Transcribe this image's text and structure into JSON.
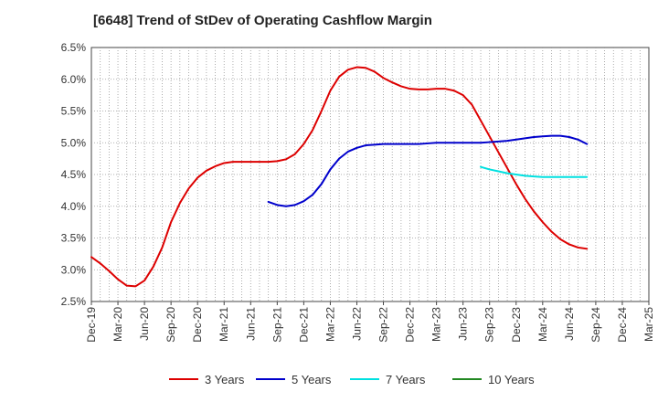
{
  "chart_data": {
    "type": "line",
    "title": "[6648]  Trend of StDev of Operating Cashflow Margin",
    "xlabel": "",
    "ylabel": "",
    "ylim": [
      2.5,
      6.5
    ],
    "y_ticks": [
      "6.5%",
      "6.0%",
      "5.5%",
      "5.0%",
      "4.5%",
      "4.0%",
      "3.5%",
      "3.0%",
      "2.5%"
    ],
    "x_ticks": [
      "Dec-19",
      "Mar-20",
      "Jun-20",
      "Sep-20",
      "Dec-20",
      "Mar-21",
      "Jun-21",
      "Sep-21",
      "Dec-21",
      "Mar-22",
      "Jun-22",
      "Sep-22",
      "Dec-22",
      "Mar-23",
      "Jun-23",
      "Sep-23",
      "Dec-23",
      "Mar-24",
      "Jun-24",
      "Sep-24",
      "Dec-24",
      "Mar-25"
    ],
    "grid": true,
    "legend_position": "bottom",
    "series": [
      {
        "name": "3 Years",
        "color": "#dd0000",
        "points": [
          [
            0,
            3.2
          ],
          [
            1,
            3.1
          ],
          [
            2,
            2.98
          ],
          [
            3,
            2.85
          ],
          [
            4,
            2.75
          ],
          [
            5,
            2.74
          ],
          [
            6,
            2.83
          ],
          [
            7,
            3.05
          ],
          [
            8,
            3.35
          ],
          [
            9,
            3.75
          ],
          [
            10,
            4.05
          ],
          [
            11,
            4.28
          ],
          [
            12,
            4.45
          ],
          [
            13,
            4.56
          ],
          [
            14,
            4.63
          ],
          [
            15,
            4.68
          ],
          [
            16,
            4.7
          ],
          [
            17,
            4.7
          ],
          [
            18,
            4.7
          ],
          [
            19,
            4.7
          ],
          [
            20,
            4.7
          ],
          [
            21,
            4.71
          ],
          [
            22,
            4.74
          ],
          [
            23,
            4.82
          ],
          [
            24,
            4.98
          ],
          [
            25,
            5.2
          ],
          [
            26,
            5.5
          ],
          [
            27,
            5.82
          ],
          [
            28,
            6.04
          ],
          [
            29,
            6.15
          ],
          [
            30,
            6.19
          ],
          [
            31,
            6.18
          ],
          [
            32,
            6.12
          ],
          [
            33,
            6.02
          ],
          [
            34,
            5.95
          ],
          [
            35,
            5.89
          ],
          [
            36,
            5.85
          ],
          [
            37,
            5.84
          ],
          [
            38,
            5.84
          ],
          [
            39,
            5.85
          ],
          [
            40,
            5.85
          ],
          [
            41,
            5.82
          ],
          [
            42,
            5.75
          ],
          [
            43,
            5.6
          ],
          [
            44,
            5.35
          ],
          [
            45,
            5.1
          ],
          [
            46,
            4.85
          ],
          [
            47,
            4.6
          ],
          [
            48,
            4.35
          ],
          [
            49,
            4.12
          ],
          [
            50,
            3.92
          ],
          [
            51,
            3.75
          ],
          [
            52,
            3.6
          ],
          [
            53,
            3.48
          ],
          [
            54,
            3.4
          ],
          [
            55,
            3.35
          ],
          [
            56,
            3.33
          ]
        ]
      },
      {
        "name": "5 Years",
        "color": "#0000cc",
        "points": [
          [
            20,
            4.07
          ],
          [
            21,
            4.02
          ],
          [
            22,
            4.0
          ],
          [
            23,
            4.02
          ],
          [
            24,
            4.08
          ],
          [
            25,
            4.18
          ],
          [
            26,
            4.35
          ],
          [
            27,
            4.58
          ],
          [
            28,
            4.75
          ],
          [
            29,
            4.86
          ],
          [
            30,
            4.92
          ],
          [
            31,
            4.96
          ],
          [
            32,
            4.97
          ],
          [
            33,
            4.98
          ],
          [
            34,
            4.98
          ],
          [
            35,
            4.98
          ],
          [
            36,
            4.98
          ],
          [
            37,
            4.98
          ],
          [
            38,
            4.99
          ],
          [
            39,
            5.0
          ],
          [
            40,
            5.0
          ],
          [
            41,
            5.0
          ],
          [
            42,
            5.0
          ],
          [
            43,
            5.0
          ],
          [
            44,
            5.0
          ],
          [
            45,
            5.01
          ],
          [
            46,
            5.02
          ],
          [
            47,
            5.03
          ],
          [
            48,
            5.05
          ],
          [
            49,
            5.07
          ],
          [
            50,
            5.09
          ],
          [
            51,
            5.1
          ],
          [
            52,
            5.11
          ],
          [
            53,
            5.11
          ],
          [
            54,
            5.09
          ],
          [
            55,
            5.05
          ],
          [
            56,
            4.98
          ]
        ]
      },
      {
        "name": "7 Years",
        "color": "#00e0e0",
        "points": [
          [
            44,
            4.62
          ],
          [
            45,
            4.58
          ],
          [
            46,
            4.55
          ],
          [
            47,
            4.52
          ],
          [
            48,
            4.5
          ],
          [
            49,
            4.48
          ],
          [
            50,
            4.47
          ],
          [
            51,
            4.46
          ],
          [
            52,
            4.46
          ],
          [
            53,
            4.46
          ],
          [
            54,
            4.46
          ],
          [
            55,
            4.46
          ],
          [
            56,
            4.46
          ]
        ]
      },
      {
        "name": "10 Years",
        "color": "#228822",
        "points": []
      }
    ]
  }
}
